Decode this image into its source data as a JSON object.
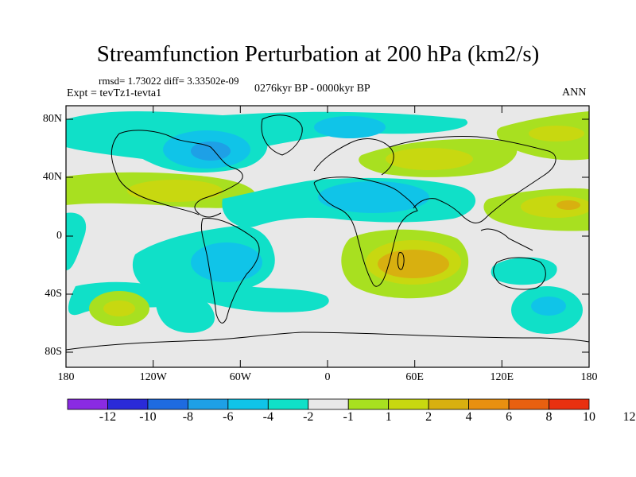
{
  "title": "Streamfunction Perturbation at 200 hPa (km2/s)",
  "stats": "rmsd= 1.73022 diff= 3.33502e-09",
  "experiment": "Expt = tevTz1-tevta1",
  "period": "0276kyr BP - 0000kyr BP",
  "season": "ANN",
  "axes": {
    "y_ticks": [
      "80N",
      "40N",
      "0",
      "40S",
      "80S"
    ],
    "x_ticks": [
      "180",
      "120W",
      "60W",
      "0",
      "60E",
      "120E",
      "180"
    ]
  },
  "colorbar": {
    "colors": [
      "#8a2be2",
      "#2a2ad8",
      "#1e6be0",
      "#1ea0e6",
      "#10c4e8",
      "#10e0c8",
      "#e8e8e8",
      "#a8e020",
      "#c8d810",
      "#d8b010",
      "#e89010",
      "#e86010",
      "#e83010"
    ],
    "labels": [
      "-12",
      "-10",
      "-8",
      "-6",
      "-4",
      "-2",
      "-1",
      "1",
      "2",
      "4",
      "6",
      "8",
      "10",
      "12"
    ]
  },
  "colors": {
    "neutral": "#e8e8e8",
    "cyan": "#10c4e8",
    "aqua": "#10e0c8",
    "green": "#a8e020",
    "yellow": "#c8d810",
    "orange": "#d8b010",
    "dark_orange": "#e89010",
    "blue": "#1ea0e6"
  }
}
